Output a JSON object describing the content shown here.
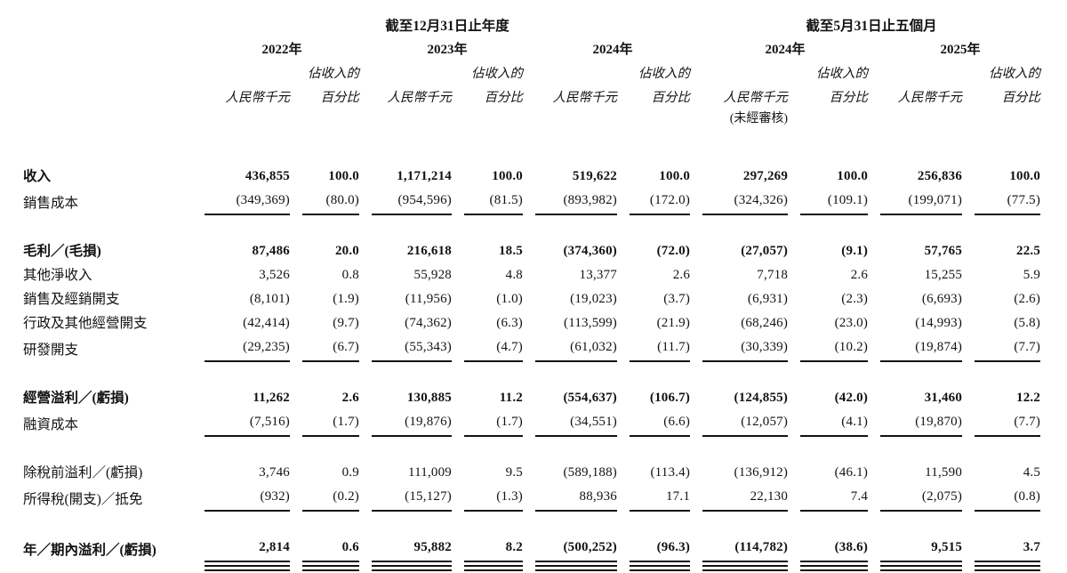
{
  "page": {
    "background_color": "#ffffff",
    "text_color": "#121212"
  },
  "table": {
    "period_groups": [
      {
        "label": "截至12月31日止年度",
        "col_span": 6
      },
      {
        "label": "截至5月31日止五個月",
        "col_span": 4
      }
    ],
    "year_columns": [
      {
        "year": "2022年",
        "unaudited": false
      },
      {
        "year": "2023年",
        "unaudited": false
      },
      {
        "year": "2024年",
        "unaudited": false
      },
      {
        "year": "2024年",
        "unaudited": true
      },
      {
        "year": "2025年",
        "unaudited": false
      }
    ],
    "unit_header": "人民幣千元",
    "pct_header_line1": "佔收入的",
    "pct_header_line2": "百分比",
    "unaudited_note": "(未經審核)",
    "rows": [
      {
        "id": "revenue",
        "label": "收入",
        "bold": true,
        "rule": null,
        "spacer_after": false,
        "values": [
          "436,855",
          "100.0",
          "1,171,214",
          "100.0",
          "519,622",
          "100.0",
          "297,269",
          "100.0",
          "256,836",
          "100.0"
        ]
      },
      {
        "id": "cost-of-sales",
        "label": "銷售成本",
        "bold": false,
        "rule": "single",
        "spacer_after": true,
        "values": [
          "(349,369)",
          "(80.0)",
          "(954,596)",
          "(81.5)",
          "(893,982)",
          "(172.0)",
          "(324,326)",
          "(109.1)",
          "(199,071)",
          "(77.5)"
        ]
      },
      {
        "id": "gross-profit-loss",
        "label": "毛利／(毛損)",
        "bold": true,
        "rule": null,
        "spacer_after": false,
        "values": [
          "87,486",
          "20.0",
          "216,618",
          "18.5",
          "(374,360)",
          "(72.0)",
          "(27,057)",
          "(9.1)",
          "57,765",
          "22.5"
        ]
      },
      {
        "id": "other-net-income",
        "label": "其他淨收入",
        "bold": false,
        "rule": null,
        "spacer_after": false,
        "values": [
          "3,526",
          "0.8",
          "55,928",
          "4.8",
          "13,377",
          "2.6",
          "7,718",
          "2.6",
          "15,255",
          "5.9"
        ]
      },
      {
        "id": "selling-distribution-expenses",
        "label": "銷售及經銷開支",
        "bold": false,
        "rule": null,
        "spacer_after": false,
        "values": [
          "(8,101)",
          "(1.9)",
          "(11,956)",
          "(1.0)",
          "(19,023)",
          "(3.7)",
          "(6,931)",
          "(2.3)",
          "(6,693)",
          "(2.6)"
        ]
      },
      {
        "id": "admin-other-operating-expenses",
        "label": "行政及其他經營開支",
        "bold": false,
        "rule": null,
        "spacer_after": false,
        "values": [
          "(42,414)",
          "(9.7)",
          "(74,362)",
          "(6.3)",
          "(113,599)",
          "(21.9)",
          "(68,246)",
          "(23.0)",
          "(14,993)",
          "(5.8)"
        ]
      },
      {
        "id": "rd-expenses",
        "label": "研發開支",
        "bold": false,
        "rule": "single",
        "spacer_after": true,
        "values": [
          "(29,235)",
          "(6.7)",
          "(55,343)",
          "(4.7)",
          "(61,032)",
          "(11.7)",
          "(30,339)",
          "(10.2)",
          "(19,874)",
          "(7.7)"
        ]
      },
      {
        "id": "operating-profit-loss",
        "label": "經營溢利／(虧損)",
        "bold": true,
        "rule": null,
        "spacer_after": false,
        "values": [
          "11,262",
          "2.6",
          "130,885",
          "11.2",
          "(554,637)",
          "(106.7)",
          "(124,855)",
          "(42.0)",
          "31,460",
          "12.2"
        ]
      },
      {
        "id": "finance-costs",
        "label": "融資成本",
        "bold": false,
        "rule": "single",
        "spacer_after": true,
        "values": [
          "(7,516)",
          "(1.7)",
          "(19,876)",
          "(1.7)",
          "(34,551)",
          "(6.6)",
          "(12,057)",
          "(4.1)",
          "(19,870)",
          "(7.7)"
        ]
      },
      {
        "id": "profit-loss-before-tax",
        "label": "除稅前溢利／(虧損)",
        "bold": false,
        "rule": null,
        "spacer_after": false,
        "values": [
          "3,746",
          "0.9",
          "111,009",
          "9.5",
          "(589,188)",
          "(113.4)",
          "(136,912)",
          "(46.1)",
          "11,590",
          "4.5"
        ]
      },
      {
        "id": "income-tax-expense-credit",
        "label": "所得稅(開支)／抵免",
        "bold": false,
        "rule": "single",
        "spacer_after": true,
        "values": [
          "(932)",
          "(0.2)",
          "(15,127)",
          "(1.3)",
          "88,936",
          "17.1",
          "22,130",
          "7.4",
          "(2,075)",
          "(0.8)"
        ]
      },
      {
        "id": "profit-loss-for-year-period",
        "label": "年／期內溢利／(虧損)",
        "bold": true,
        "rule": "double",
        "spacer_after": false,
        "values": [
          "2,814",
          "0.6",
          "95,882",
          "8.2",
          "(500,252)",
          "(96.3)",
          "(114,782)",
          "(38.6)",
          "9,515",
          "3.7"
        ]
      }
    ]
  }
}
